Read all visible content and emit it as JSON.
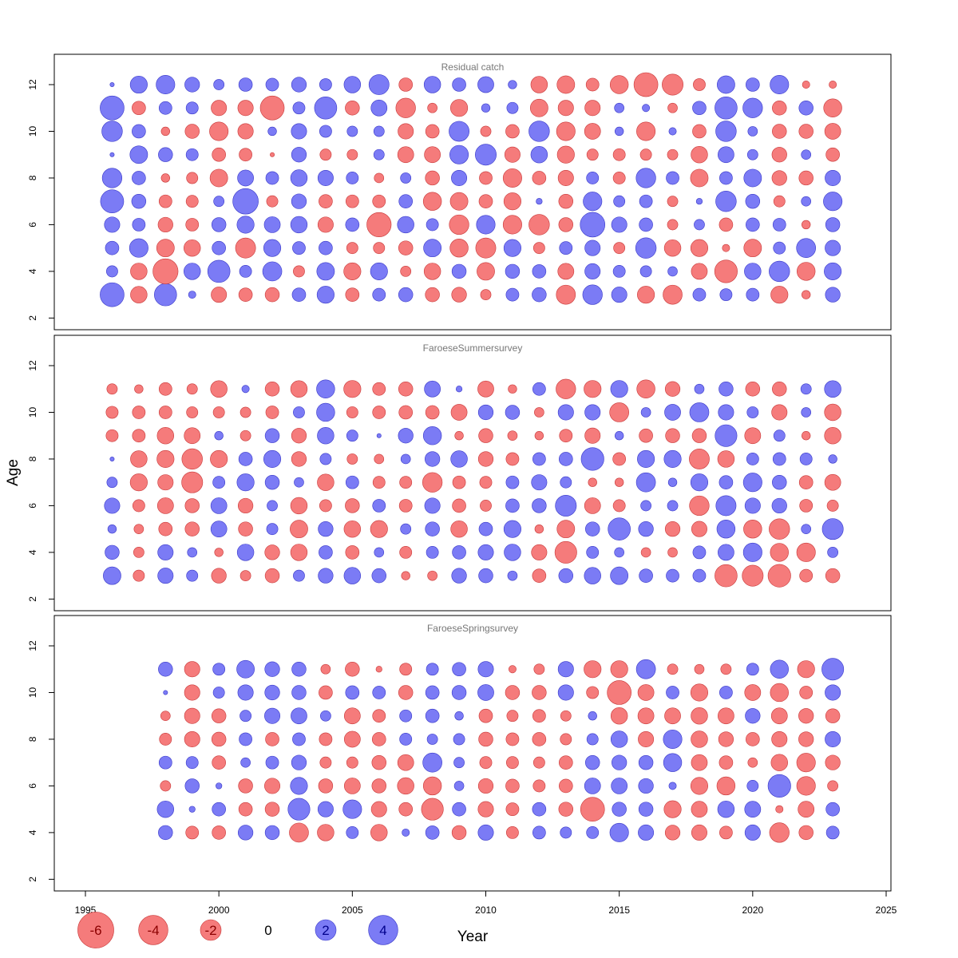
{
  "chart_data": {
    "type": "scatter",
    "subtype": "bubble",
    "xlabel": "Year",
    "ylabel": "Age",
    "xlim": [
      1995,
      2025
    ],
    "x_ticks": [
      1995,
      2000,
      2005,
      2010,
      2015,
      2020,
      2025
    ],
    "ylim": [
      1.5,
      13.3
    ],
    "y_ticks": [
      2,
      4,
      6,
      8,
      10,
      12
    ],
    "colors": {
      "positive": "#7b7bf5",
      "negative": "#f57b7b",
      "positive_stroke": "#3838c8",
      "negative_stroke": "#c83838",
      "zero": "#000000"
    },
    "legend": {
      "placement": "bottom",
      "values": [
        -6,
        -4,
        -2,
        0,
        2,
        4
      ]
    },
    "panels": [
      {
        "title": "Residual catch",
        "years": [
          1996,
          1997,
          1998,
          1999,
          2000,
          2001,
          2002,
          2003,
          2004,
          2005,
          2006,
          2007,
          2008,
          2009,
          2010,
          2011,
          2012,
          2013,
          2014,
          2015,
          2016,
          2017,
          2018,
          2019,
          2020,
          2021,
          2022,
          2023
        ],
        "ages": [
          3,
          4,
          5,
          6,
          7,
          8,
          9,
          10,
          11,
          12
        ],
        "residuals": [
          [
            3.0,
            -1.5,
            2.6,
            0.3,
            -1.3,
            -1.0,
            -1.1,
            1.0,
            1.6,
            -1.0,
            0.9,
            1.1,
            -1.1,
            -1.2,
            -0.6,
            0.9,
            1.1,
            -2.0,
            2.1,
            1.3,
            -1.6,
            -2.0,
            0.9,
            0.8,
            0.9,
            -1.6,
            -0.4,
            1.2
          ],
          [
            0.7,
            -1.5,
            -3.3,
            1.5,
            2.6,
            0.8,
            2.0,
            -0.7,
            1.7,
            -1.6,
            1.6,
            -0.6,
            -1.5,
            1.1,
            -1.7,
            1.1,
            1.0,
            -1.4,
            1.3,
            0.8,
            0.7,
            0.5,
            -1.4,
            -2.7,
            1.5,
            2.3,
            -1.8,
            1.6
          ],
          [
            1.0,
            1.9,
            -1.7,
            -1.5,
            1.0,
            -2.2,
            1.6,
            0.9,
            1.0,
            -0.7,
            -0.7,
            -1.1,
            1.7,
            -1.8,
            -2.2,
            1.6,
            -0.7,
            0.9,
            1.3,
            -0.7,
            2.3,
            -1.5,
            -1.6,
            -0.3,
            -1.7,
            0.8,
            2.0,
            1.3
          ],
          [
            1.3,
            0.9,
            -1.2,
            -0.9,
            1.1,
            1.6,
            1.4,
            1.5,
            -1.3,
            1.0,
            -3.1,
            1.5,
            0.8,
            -2.1,
            1.9,
            -1.9,
            -2.3,
            -1.1,
            3.2,
            1.3,
            1.0,
            -0.6,
            0.6,
            -1.0,
            1.0,
            0.9,
            -0.4,
            1.1
          ],
          [
            2.8,
            1.1,
            -0.9,
            -0.8,
            0.6,
            3.4,
            -0.7,
            1.2,
            -1.0,
            -0.9,
            -0.9,
            1.0,
            -1.8,
            -1.7,
            -1.0,
            -1.6,
            0.2,
            -1.1,
            1.9,
            0.7,
            0.9,
            -0.6,
            0.2,
            2.3,
            1.1,
            -0.7,
            0.5,
            1.9
          ],
          [
            2.1,
            1.0,
            -0.4,
            -0.7,
            -1.7,
            1.4,
            0.9,
            1.5,
            1.3,
            0.8,
            -0.5,
            0.6,
            -1.1,
            1.3,
            -0.9,
            -1.9,
            -1.0,
            -1.3,
            0.8,
            -0.8,
            2.1,
            0.9,
            -1.7,
            0.9,
            1.7,
            -1.2,
            -1.1,
            1.3
          ],
          [
            0.1,
            1.7,
            1.1,
            0.8,
            -1.0,
            -0.9,
            -0.1,
            1.2,
            -0.7,
            -0.6,
            0.6,
            -1.4,
            -1.4,
            1.9,
            2.4,
            -1.3,
            1.5,
            -1.6,
            -0.7,
            -0.8,
            -0.7,
            -0.6,
            -1.5,
            1.4,
            0.6,
            -1.2,
            0.5,
            -1.0
          ],
          [
            2.3,
            1.0,
            -0.4,
            -1.1,
            -1.9,
            -1.3,
            0.4,
            1.3,
            0.8,
            0.6,
            0.6,
            -1.3,
            -1.0,
            2.2,
            -0.6,
            -1.0,
            2.3,
            -1.9,
            -1.4,
            0.4,
            -1.9,
            0.3,
            -1.0,
            2.3,
            0.5,
            -1.1,
            -1.1,
            -1.4
          ],
          [
            3.0,
            -1.0,
            0.9,
            0.8,
            -1.3,
            -1.3,
            -3.0,
            0.8,
            2.6,
            -1.1,
            1.4,
            -2.1,
            -0.5,
            -1.6,
            0.4,
            0.7,
            -1.7,
            -1.3,
            -1.3,
            0.5,
            0.3,
            -0.5,
            1.0,
            2.6,
            2.1,
            -1.1,
            1.1,
            -1.8
          ],
          [
            0.1,
            1.6,
            1.9,
            1.2,
            0.6,
            1.0,
            0.9,
            1.2,
            0.8,
            1.5,
            2.2,
            -1.0,
            1.5,
            1.0,
            1.4,
            0.4,
            -1.5,
            -1.7,
            -0.9,
            -1.8,
            -3.0,
            -2.4,
            -0.8,
            1.7,
            1.0,
            1.9,
            -0.3,
            -0.3
          ]
        ]
      },
      {
        "title": "FaroeseSummersurvey",
        "years": [
          1996,
          1997,
          1998,
          1999,
          2000,
          2001,
          2002,
          2003,
          2004,
          2005,
          2006,
          2007,
          2008,
          2009,
          2010,
          2011,
          2012,
          2013,
          2014,
          2015,
          2016,
          2017,
          2018,
          2019,
          2020,
          2021,
          2022,
          2023
        ],
        "ages": [
          3,
          4,
          5,
          6,
          7,
          8,
          9,
          10,
          11
        ],
        "residuals": [
          [
            1.7,
            -0.7,
            1.3,
            0.7,
            -1.2,
            -0.6,
            -1.1,
            0.7,
            1.2,
            1.5,
            1.1,
            -0.4,
            -0.5,
            1.2,
            1.1,
            0.5,
            -1.0,
            1.1,
            1.5,
            1.7,
            1.0,
            0.9,
            0.9,
            -2.6,
            -2.4,
            -2.7,
            -0.9,
            -1.1
          ],
          [
            1.1,
            -0.6,
            1.3,
            0.5,
            -0.4,
            1.5,
            -1.2,
            -1.5,
            1.0,
            -1.0,
            0.5,
            -0.8,
            0.8,
            1.0,
            1.3,
            1.5,
            -1.3,
            -2.5,
            0.8,
            0.5,
            -0.5,
            -0.5,
            0.9,
            1.4,
            1.9,
            -1.8,
            -1.9,
            0.6
          ],
          [
            0.4,
            -0.5,
            -1.0,
            -1.1,
            1.4,
            -1.1,
            0.7,
            -1.7,
            1.2,
            -1.5,
            -1.6,
            0.6,
            1.1,
            -1.5,
            1.0,
            1.6,
            -0.4,
            -1.7,
            1.1,
            2.6,
            1.2,
            -1.2,
            -1.3,
            1.8,
            -1.8,
            -2.3,
            0.5,
            2.4
          ],
          [
            1.3,
            -0.8,
            -1.4,
            -1.1,
            1.4,
            -1.2,
            0.6,
            -1.5,
            -0.8,
            -1.1,
            0.9,
            -0.9,
            1.3,
            -1.0,
            -0.7,
            1.0,
            1.1,
            2.4,
            -1.4,
            -0.8,
            0.6,
            0.6,
            -2.1,
            2.2,
            1.3,
            1.2,
            -0.9,
            -0.7
          ],
          [
            0.6,
            -1.6,
            -1.3,
            -2.4,
            0.8,
            1.6,
            1.1,
            0.5,
            -1.5,
            0.9,
            -0.8,
            -0.8,
            -2.1,
            -0.9,
            -0.8,
            0.9,
            1.3,
            0.7,
            -0.4,
            -0.4,
            2.0,
            0.4,
            1.6,
            1.0,
            1.9,
            1.1,
            -1.0,
            -1.4
          ],
          [
            0.1,
            -1.5,
            -1.6,
            -2.3,
            -1.6,
            1.0,
            1.6,
            -1.2,
            0.7,
            -0.6,
            -0.5,
            0.5,
            1.2,
            1.5,
            -1.2,
            -0.9,
            0.9,
            1.0,
            2.7,
            -0.9,
            1.6,
            1.6,
            -2.2,
            -1.5,
            0.8,
            0.9,
            0.8,
            0.4
          ],
          [
            -0.8,
            -0.9,
            -1.5,
            -1.4,
            0.4,
            -0.6,
            1.1,
            -1.2,
            1.5,
            0.7,
            0.1,
            1.2,
            1.8,
            -0.4,
            -1.1,
            -0.5,
            -0.4,
            -0.9,
            -1.3,
            0.4,
            -1.0,
            -1.1,
            -1.1,
            2.5,
            -1.4,
            0.7,
            -0.4,
            -1.5
          ],
          [
            -0.8,
            -0.9,
            -0.9,
            -0.7,
            -0.7,
            -0.6,
            -0.9,
            0.7,
            1.8,
            -0.7,
            -0.9,
            -1.0,
            -1.0,
            -1.4,
            1.2,
            1.1,
            -0.5,
            1.3,
            1.3,
            -2.0,
            0.5,
            1.4,
            2.0,
            1.3,
            0.7,
            -1.3,
            0.5,
            -1.5
          ],
          [
            -0.6,
            -0.4,
            -0.9,
            -0.6,
            -1.5,
            0.3,
            -1.1,
            -1.5,
            1.8,
            -1.6,
            -0.9,
            -1.1,
            1.4,
            0.2,
            -1.4,
            -0.4,
            0.9,
            -2.1,
            -1.6,
            1.6,
            -1.8,
            -1.2,
            0.5,
            1.1,
            -1.1,
            -1.1,
            0.6,
            1.5
          ]
        ]
      },
      {
        "title": "FaroeseSpringsurvey",
        "years": [
          1998,
          1999,
          2000,
          2001,
          2002,
          2003,
          2004,
          2005,
          2006,
          2007,
          2008,
          2009,
          2010,
          2011,
          2012,
          2013,
          2014,
          2015,
          2016,
          2017,
          2018,
          2019,
          2020,
          2021,
          2022,
          2023
        ],
        "ages": [
          4,
          5,
          6,
          7,
          8,
          9,
          10,
          11
        ],
        "residuals": [
          [
            1.1,
            -0.9,
            -1.0,
            1.2,
            1.1,
            -2.0,
            -1.5,
            0.8,
            -1.5,
            0.3,
            1.0,
            -1.1,
            1.3,
            -0.8,
            0.9,
            0.7,
            0.8,
            1.9,
            1.3,
            -1.2,
            -1.3,
            -0.9,
            1.3,
            -2.1,
            -1.1,
            0.9
          ],
          [
            1.5,
            0.2,
            1.0,
            -1.0,
            -1.1,
            2.5,
            1.3,
            1.9,
            -1.3,
            -1.0,
            -2.5,
            1.0,
            -1.3,
            -0.9,
            1.0,
            -1.1,
            -3.0,
            1.1,
            1.1,
            -1.6,
            -1.4,
            1.5,
            1.4,
            -0.3,
            -1.4,
            1.0
          ],
          [
            -0.6,
            1.1,
            0.2,
            -1.1,
            -1.3,
            1.6,
            -1.1,
            -1.4,
            -1.1,
            -1.5,
            -1.8,
            0.5,
            -1.2,
            -1.0,
            -0.8,
            -1.0,
            1.4,
            1.4,
            1.2,
            0.3,
            -1.6,
            -1.8,
            0.7,
            2.7,
            -1.9,
            -0.6
          ],
          [
            0.9,
            0.8,
            -1.0,
            0.5,
            0.9,
            1.2,
            -0.7,
            -0.7,
            -1.1,
            -1.4,
            2.0,
            0.6,
            -0.8,
            -0.8,
            -0.7,
            -1.0,
            1.1,
            1.2,
            1.1,
            1.8,
            -1.4,
            -1.0,
            -0.5,
            -1.5,
            -1.9,
            -1.2
          ],
          [
            -0.8,
            -1.3,
            -1.1,
            0.9,
            -1.0,
            0.9,
            -0.9,
            -1.4,
            -1.0,
            0.8,
            0.6,
            0.7,
            -1.1,
            -0.9,
            -1.0,
            -0.7,
            0.7,
            1.5,
            -1.3,
            1.9,
            -1.5,
            -1.2,
            -1.0,
            -1.3,
            -1.2,
            1.3
          ],
          [
            -0.5,
            -1.3,
            -1.1,
            0.7,
            1.3,
            1.4,
            0.6,
            -1.4,
            -0.9,
            0.8,
            1.0,
            0.4,
            -1.0,
            -0.7,
            -0.9,
            -0.6,
            0.4,
            -1.5,
            -1.4,
            -1.4,
            -1.5,
            -1.4,
            1.2,
            -1.4,
            -1.2,
            -1.1
          ],
          [
            0.1,
            -1.3,
            0.7,
            1.3,
            1.2,
            1.1,
            -1.0,
            1.0,
            0.9,
            -1.1,
            1.0,
            1.1,
            1.4,
            -1.1,
            -1.1,
            1.3,
            -0.8,
            -3.0,
            -1.4,
            0.9,
            -1.6,
            0.9,
            -1.4,
            -1.8,
            -0.9,
            1.3
          ],
          [
            1.1,
            -1.3,
            0.8,
            1.7,
            1.2,
            1.1,
            -0.5,
            -1.1,
            -0.2,
            -0.8,
            0.8,
            1.0,
            1.3,
            -0.3,
            -0.6,
            1.3,
            -1.6,
            -1.6,
            2.0,
            -0.6,
            -0.5,
            -0.6,
            0.8,
            1.8,
            -1.6,
            2.5
          ]
        ]
      }
    ]
  }
}
